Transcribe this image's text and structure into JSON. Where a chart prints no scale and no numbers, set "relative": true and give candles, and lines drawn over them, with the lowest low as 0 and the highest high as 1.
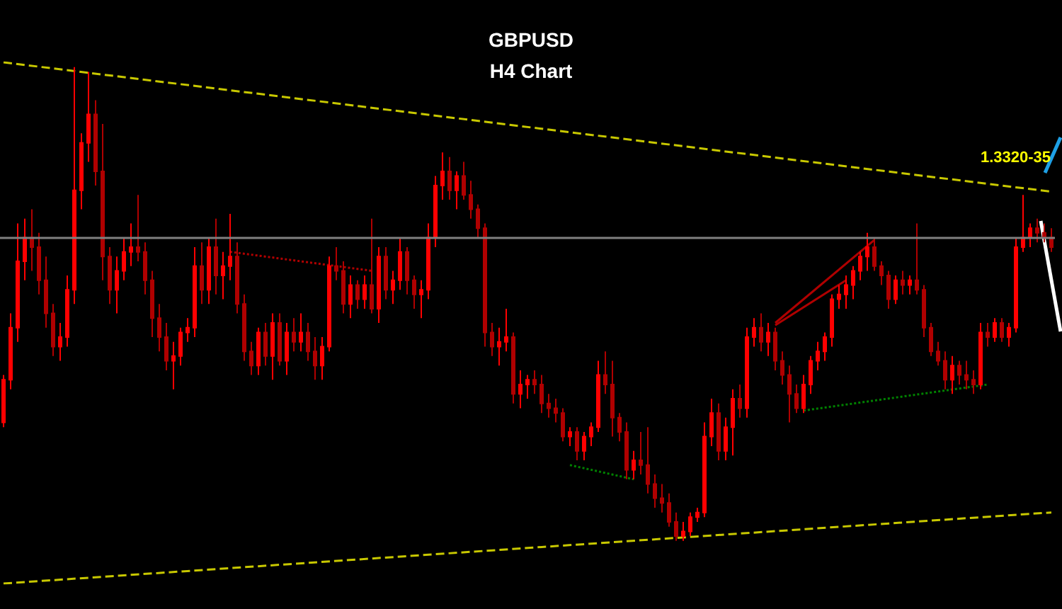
{
  "chart_data": {
    "type": "candlestick",
    "title": "GBPUSD",
    "subtitle": "H4 Chart",
    "relative": true,
    "colors": [
      "#ff0000",
      "#ff0000",
      "#ff0000",
      "#ff0000",
      "#b00000",
      "#b00000",
      "#b00000",
      "#b00000",
      "#ff0000",
      "#ff0000",
      "#ff0000",
      "#ff0000",
      "#ff0000",
      "#b00000",
      "#b00000",
      "#b00000",
      "#ff0000",
      "#ff0000",
      "#ff0000",
      "#b00000",
      "#b00000",
      "#b00000",
      "#b00000",
      "#b00000",
      "#ff0000",
      "#ff0000",
      "#ff0000",
      "#ff0000",
      "#b00000",
      "#ff0000",
      "#b00000",
      "#ff0000",
      "#ff0000",
      "#b00000",
      "#b00000",
      "#b00000",
      "#ff0000",
      "#b00000",
      "#ff0000",
      "#b00000",
      "#ff0000",
      "#b00000",
      "#ff0000",
      "#b00000",
      "#b00000",
      "#ff0000",
      "#ff0000",
      "#b00000",
      "#b00000",
      "#ff0000",
      "#b00000",
      "#ff0000",
      "#b00000",
      "#ff0000",
      "#b00000",
      "#ff0000",
      "#ff0000",
      "#b00000",
      "#b00000",
      "#ff0000",
      "#ff0000",
      "#ff0000",
      "#ff0000",
      "#b00000",
      "#ff0000",
      "#b00000",
      "#b00000",
      "#b00000",
      "#b00000",
      "#b00000",
      "#ff0000",
      "#ff0000",
      "#b00000",
      "#ff0000",
      "#ff0000",
      "#b00000",
      "#b00000",
      "#b00000",
      "#b00000",
      "#b00000",
      "#ff0000",
      "#b00000",
      "#ff0000",
      "#ff0000",
      "#ff0000",
      "#b00000",
      "#b00000",
      "#b00000",
      "#b00000",
      "#ff0000",
      "#b00000",
      "#b00000",
      "#b00000",
      "#b00000",
      "#b00000",
      "#b00000",
      "#ff0000",
      "#ff0000",
      "#ff0000",
      "#ff0000",
      "#ff0000",
      "#b00000",
      "#ff0000",
      "#ff0000",
      "#b00000",
      "#ff0000",
      "#ff0000",
      "#b00000",
      "#ff0000",
      "#b00000",
      "#b00000",
      "#b00000",
      "#b00000",
      "#ff0000",
      "#ff0000",
      "#ff0000",
      "#ff0000",
      "#ff0000",
      "#ff0000",
      "#ff0000",
      "#ff0000",
      "#ff0000",
      "#ff0000",
      "#b00000",
      "#b00000",
      "#b00000",
      "#ff0000",
      "#b00000",
      "#ff0000",
      "#b00000",
      "#b00000",
      "#b00000",
      "#b00000",
      "#b00000",
      "#ff0000",
      "#b00000",
      "#b00000",
      "#b00000",
      "#ff0000",
      "#b00000",
      "#ff0000",
      "#b00000",
      "#ff0000",
      "#ff0000",
      "#ff0000",
      "#ff0000",
      "#b00000",
      "#b00000",
      "#b00000"
    ],
    "categories": [
      null,
      null,
      null,
      null,
      null,
      null,
      null,
      null,
      null,
      null,
      null,
      null,
      null,
      null,
      null,
      null,
      null,
      null,
      null,
      null,
      null,
      null,
      null,
      null,
      null,
      null,
      null,
      null,
      null,
      null,
      null,
      null,
      null,
      null,
      null,
      null,
      null,
      null,
      null,
      null,
      null,
      null,
      null,
      null,
      null,
      null,
      null,
      null,
      null,
      null,
      null,
      null,
      null,
      null,
      null,
      null,
      null,
      null,
      null,
      null,
      null,
      null,
      null,
      null,
      null,
      null,
      null,
      null,
      null,
      null,
      null,
      null,
      null,
      null,
      null,
      null,
      null,
      null,
      null,
      null,
      null,
      null,
      null,
      null,
      null,
      null,
      null,
      null,
      null,
      null,
      null,
      null,
      null,
      null,
      null,
      null,
      null,
      null,
      null,
      null,
      null,
      null,
      null,
      null,
      null,
      null,
      null,
      null,
      null,
      null,
      null,
      null,
      null,
      null,
      null,
      null,
      null,
      null,
      null,
      null,
      null,
      null,
      null,
      null,
      null,
      null,
      null,
      null,
      null,
      null,
      null,
      null,
      null,
      null,
      null,
      null,
      null,
      null,
      null,
      null,
      null,
      null,
      null,
      null,
      null,
      null,
      null,
      null,
      null
    ],
    "ohlc": [
      [
        0.25,
        0.35,
        0.24,
        0.34
      ],
      [
        0.34,
        0.48,
        0.32,
        0.45
      ],
      [
        0.45,
        0.67,
        0.42,
        0.59
      ],
      [
        0.59,
        0.68,
        0.55,
        0.64
      ],
      [
        0.64,
        0.7,
        0.57,
        0.62
      ],
      [
        0.62,
        0.65,
        0.52,
        0.55
      ],
      [
        0.55,
        0.6,
        0.45,
        0.48
      ],
      [
        0.48,
        0.5,
        0.39,
        0.41
      ],
      [
        0.41,
        0.46,
        0.38,
        0.43
      ],
      [
        0.43,
        0.56,
        0.41,
        0.53
      ],
      [
        0.53,
        1,
        0.5,
        0.74
      ],
      [
        0.74,
        0.86,
        0.7,
        0.84
      ],
      [
        0.84,
        0.99,
        0.8,
        0.9
      ],
      [
        0.9,
        0.93,
        0.75,
        0.78
      ],
      [
        0.78,
        0.88,
        0.55,
        0.6
      ],
      [
        0.6,
        0.62,
        0.5,
        0.53
      ],
      [
        0.53,
        0.6,
        0.48,
        0.57
      ],
      [
        0.57,
        0.64,
        0.55,
        0.61
      ],
      [
        0.61,
        0.67,
        0.58,
        0.62
      ],
      [
        0.62,
        0.73,
        0.59,
        0.61
      ],
      [
        0.61,
        0.63,
        0.52,
        0.55
      ],
      [
        0.55,
        0.57,
        0.43,
        0.47
      ],
      [
        0.47,
        0.5,
        0.4,
        0.43
      ],
      [
        0.43,
        0.46,
        0.36,
        0.38
      ],
      [
        0.38,
        0.42,
        0.32,
        0.39
      ],
      [
        0.39,
        0.45,
        0.37,
        0.44
      ],
      [
        0.44,
        0.47,
        0.42,
        0.45
      ],
      [
        0.45,
        0.62,
        0.43,
        0.58
      ],
      [
        0.58,
        0.63,
        0.5,
        0.53
      ],
      [
        0.53,
        0.64,
        0.5,
        0.62
      ],
      [
        0.62,
        0.68,
        0.52,
        0.56
      ],
      [
        0.56,
        0.61,
        0.51,
        0.58
      ],
      [
        0.58,
        0.69,
        0.55,
        0.6
      ],
      [
        0.6,
        0.63,
        0.48,
        0.5
      ],
      [
        0.5,
        0.52,
        0.38,
        0.4
      ],
      [
        0.4,
        0.42,
        0.35,
        0.37
      ],
      [
        0.37,
        0.45,
        0.35,
        0.44
      ],
      [
        0.44,
        0.46,
        0.37,
        0.39
      ],
      [
        0.39,
        0.48,
        0.34,
        0.46
      ],
      [
        0.46,
        0.48,
        0.37,
        0.38
      ],
      [
        0.38,
        0.46,
        0.35,
        0.44
      ],
      [
        0.44,
        0.47,
        0.4,
        0.42
      ],
      [
        0.42,
        0.48,
        0.4,
        0.44
      ],
      [
        0.44,
        0.46,
        0.38,
        0.4
      ],
      [
        0.4,
        0.43,
        0.34,
        0.37
      ],
      [
        0.37,
        0.43,
        0.34,
        0.41
      ],
      [
        0.41,
        0.6,
        0.4,
        0.58
      ],
      [
        0.58,
        0.62,
        0.55,
        0.57
      ],
      [
        0.57,
        0.59,
        0.48,
        0.5
      ],
      [
        0.5,
        0.56,
        0.47,
        0.54
      ],
      [
        0.54,
        0.55,
        0.49,
        0.51
      ],
      [
        0.51,
        0.56,
        0.49,
        0.54
      ],
      [
        0.54,
        0.68,
        0.48,
        0.49
      ],
      [
        0.49,
        0.62,
        0.46,
        0.6
      ],
      [
        0.6,
        0.62,
        0.51,
        0.53
      ],
      [
        0.53,
        0.57,
        0.5,
        0.55
      ],
      [
        0.55,
        0.64,
        0.53,
        0.61
      ],
      [
        0.61,
        0.62,
        0.52,
        0.55
      ],
      [
        0.55,
        0.56,
        0.49,
        0.52
      ],
      [
        0.52,
        0.55,
        0.47,
        0.53
      ],
      [
        0.53,
        0.67,
        0.51,
        0.64
      ],
      [
        0.64,
        0.77,
        0.62,
        0.75
      ],
      [
        0.75,
        0.82,
        0.72,
        0.78
      ],
      [
        0.78,
        0.81,
        0.72,
        0.74
      ],
      [
        0.74,
        0.78,
        0.7,
        0.77
      ],
      [
        0.77,
        0.8,
        0.72,
        0.73
      ],
      [
        0.73,
        0.76,
        0.68,
        0.7
      ],
      [
        0.7,
        0.71,
        0.64,
        0.66
      ],
      [
        0.66,
        0.67,
        0.41,
        0.44
      ],
      [
        0.44,
        0.46,
        0.39,
        0.41
      ],
      [
        0.41,
        0.45,
        0.37,
        0.42
      ],
      [
        0.42,
        0.49,
        0.4,
        0.43
      ],
      [
        0.43,
        0.44,
        0.29,
        0.31
      ],
      [
        0.31,
        0.36,
        0.28,
        0.33
      ],
      [
        0.33,
        0.35,
        0.3,
        0.34
      ],
      [
        0.34,
        0.36,
        0.31,
        0.33
      ],
      [
        0.33,
        0.35,
        0.27,
        0.29
      ],
      [
        0.29,
        0.31,
        0.26,
        0.28
      ],
      [
        0.28,
        0.3,
        0.25,
        0.27
      ],
      [
        0.27,
        0.28,
        0.21,
        0.22
      ],
      [
        0.22,
        0.24,
        0.2,
        0.23
      ],
      [
        0.23,
        0.24,
        0.17,
        0.19
      ],
      [
        0.19,
        0.23,
        0.17,
        0.22
      ],
      [
        0.22,
        0.25,
        0.2,
        0.24
      ],
      [
        0.24,
        0.38,
        0.23,
        0.35
      ],
      [
        0.35,
        0.4,
        0.31,
        0.33
      ],
      [
        0.33,
        0.38,
        0.22,
        0.26
      ],
      [
        0.26,
        0.27,
        0.21,
        0.23
      ],
      [
        0.23,
        0.25,
        0.13,
        0.15
      ],
      [
        0.15,
        0.19,
        0.13,
        0.17
      ],
      [
        0.17,
        0.23,
        0.14,
        0.16
      ],
      [
        0.16,
        0.24,
        0.1,
        0.12
      ],
      [
        0.12,
        0.14,
        0.07,
        0.09
      ],
      [
        0.09,
        0.12,
        0.06,
        0.08
      ],
      [
        0.08,
        0.1,
        0.03,
        0.04
      ],
      [
        0.04,
        0.06,
        0,
        0.01
      ],
      [
        0.01,
        0.04,
        0,
        0.02
      ],
      [
        0.02,
        0.06,
        0.01,
        0.05
      ],
      [
        0.05,
        0.07,
        0.04,
        0.06
      ],
      [
        0.06,
        0.25,
        0.05,
        0.22
      ],
      [
        0.22,
        0.3,
        0.2,
        0.27
      ],
      [
        0.27,
        0.29,
        0.17,
        0.19
      ],
      [
        0.19,
        0.26,
        0.17,
        0.24
      ],
      [
        0.24,
        0.32,
        0.18,
        0.3
      ],
      [
        0.3,
        0.33,
        0.26,
        0.28
      ],
      [
        0.28,
        0.45,
        0.26,
        0.43
      ],
      [
        0.43,
        0.47,
        0.41,
        0.45
      ],
      [
        0.45,
        0.48,
        0.4,
        0.42
      ],
      [
        0.42,
        0.46,
        0.39,
        0.44
      ],
      [
        0.44,
        0.45,
        0.36,
        0.38
      ],
      [
        0.38,
        0.4,
        0.33,
        0.35
      ],
      [
        0.35,
        0.37,
        0.25,
        0.31
      ],
      [
        0.31,
        0.33,
        0.27,
        0.28
      ],
      [
        0.28,
        0.35,
        0.27,
        0.33
      ],
      [
        0.33,
        0.39,
        0.31,
        0.38
      ],
      [
        0.38,
        0.42,
        0.36,
        0.4
      ],
      [
        0.4,
        0.44,
        0.38,
        0.43
      ],
      [
        0.43,
        0.52,
        0.41,
        0.51
      ],
      [
        0.51,
        0.54,
        0.49,
        0.52
      ],
      [
        0.52,
        0.56,
        0.49,
        0.54
      ],
      [
        0.54,
        0.58,
        0.51,
        0.57
      ],
      [
        0.57,
        0.61,
        0.55,
        0.6
      ],
      [
        0.6,
        0.65,
        0.57,
        0.62
      ],
      [
        0.62,
        0.64,
        0.57,
        0.58
      ],
      [
        0.58,
        0.59,
        0.54,
        0.56
      ],
      [
        0.56,
        0.57,
        0.49,
        0.51
      ],
      [
        0.51,
        0.56,
        0.5,
        0.55
      ],
      [
        0.55,
        0.57,
        0.52,
        0.54
      ],
      [
        0.54,
        0.56,
        0.52,
        0.55
      ],
      [
        0.55,
        0.67,
        0.52,
        0.53
      ],
      [
        0.53,
        0.54,
        0.43,
        0.45
      ],
      [
        0.45,
        0.46,
        0.39,
        0.4
      ],
      [
        0.4,
        0.42,
        0.37,
        0.38
      ],
      [
        0.38,
        0.4,
        0.32,
        0.34
      ],
      [
        0.34,
        0.39,
        0.31,
        0.37
      ],
      [
        0.37,
        0.38,
        0.33,
        0.35
      ],
      [
        0.35,
        0.38,
        0.32,
        0.34
      ],
      [
        0.34,
        0.36,
        0.31,
        0.33
      ],
      [
        0.33,
        0.46,
        0.32,
        0.44
      ],
      [
        0.44,
        0.46,
        0.41,
        0.43
      ],
      [
        0.43,
        0.47,
        0.42,
        0.46
      ],
      [
        0.46,
        0.47,
        0.42,
        0.43
      ],
      [
        0.43,
        0.46,
        0.41,
        0.45
      ],
      [
        0.45,
        0.64,
        0.44,
        0.62
      ],
      [
        0.62,
        0.73,
        0.61,
        0.64
      ],
      [
        0.64,
        0.67,
        0.62,
        0.66
      ],
      [
        0.66,
        0.68,
        0.63,
        0.65
      ],
      [
        0.65,
        0.67,
        0.63,
        0.64
      ],
      [
        0.64,
        0.66,
        0.61,
        0.62
      ]
    ],
    "series": [
      {
        "type": "line",
        "color": "#c8c800",
        "line_style": "dashed",
        "values": [
          1.01,
          null,
          null,
          null,
          null,
          null,
          null,
          null,
          null,
          null,
          null,
          null,
          null,
          null,
          null,
          null,
          null,
          null,
          null,
          null,
          null,
          null,
          null,
          null,
          null,
          null,
          null,
          null,
          null,
          null,
          null,
          null,
          null,
          null,
          null,
          null,
          null,
          null,
          null,
          null,
          null,
          null,
          null,
          null,
          null,
          null,
          null,
          null,
          null,
          null,
          null,
          null,
          null,
          null,
          null,
          null,
          null,
          null,
          null,
          null,
          null,
          null,
          null,
          null,
          null,
          null,
          null,
          null,
          null,
          null,
          null,
          null,
          null,
          null,
          null,
          null,
          null,
          null,
          null,
          null,
          null,
          null,
          null,
          null,
          null,
          null,
          null,
          null,
          null,
          null,
          null,
          null,
          null,
          null,
          null,
          null,
          null,
          null,
          null,
          null,
          null,
          null,
          null,
          null,
          null,
          null,
          null,
          null,
          null,
          null,
          null,
          null,
          null,
          null,
          null,
          null,
          null,
          null,
          null,
          null,
          null,
          null,
          null,
          null,
          null,
          null,
          null,
          null,
          null,
          null,
          null,
          null,
          null,
          null,
          null,
          null,
          null,
          null,
          null,
          null,
          null,
          null,
          null,
          null,
          null,
          null,
          null,
          null,
          0.737
        ]
      },
      {
        "type": "line",
        "color": "#c8c800",
        "line_style": "dashed",
        "values": [
          -0.09,
          null,
          null,
          null,
          null,
          null,
          null,
          null,
          null,
          null,
          null,
          null,
          null,
          null,
          null,
          null,
          null,
          null,
          null,
          null,
          null,
          null,
          null,
          null,
          null,
          null,
          null,
          null,
          null,
          null,
          null,
          null,
          null,
          null,
          null,
          null,
          null,
          null,
          null,
          null,
          null,
          null,
          null,
          null,
          null,
          null,
          null,
          null,
          null,
          null,
          null,
          null,
          null,
          null,
          null,
          null,
          null,
          null,
          null,
          null,
          null,
          null,
          null,
          null,
          null,
          null,
          null,
          null,
          null,
          null,
          null,
          null,
          null,
          null,
          null,
          null,
          null,
          null,
          null,
          null,
          null,
          null,
          null,
          null,
          null,
          null,
          null,
          null,
          null,
          null,
          null,
          null,
          null,
          null,
          null,
          null,
          null,
          null,
          null,
          null,
          null,
          null,
          null,
          null,
          null,
          null,
          null,
          null,
          null,
          null,
          null,
          null,
          null,
          null,
          null,
          null,
          null,
          null,
          null,
          null,
          null,
          null,
          null,
          null,
          null,
          null,
          null,
          null,
          null,
          null,
          null,
          null,
          null,
          null,
          null,
          null,
          null,
          null,
          null,
          null,
          null,
          null,
          null,
          null,
          null,
          null,
          null,
          null,
          0.06
        ]
      },
      {
        "type": "line",
        "color": "#b00000",
        "line_style": "dotted",
        "values": [
          null,
          null,
          null,
          null,
          null,
          null,
          null,
          null,
          null,
          null,
          null,
          null,
          null,
          null,
          null,
          null,
          null,
          null,
          null,
          null,
          null,
          null,
          null,
          null,
          null,
          null,
          null,
          null,
          null,
          null,
          null,
          null,
          0.61,
          null,
          null,
          null,
          null,
          null,
          null,
          null,
          null,
          null,
          null,
          null,
          null,
          null,
          null,
          null,
          null,
          null,
          null,
          null,
          0.57,
          null,
          null,
          null,
          null,
          null,
          null,
          null,
          null,
          null,
          null,
          null,
          null,
          null,
          null,
          null,
          null,
          null,
          null,
          null,
          null,
          null,
          null,
          null,
          null,
          null,
          null,
          null,
          null,
          null,
          null,
          null,
          null,
          null,
          null,
          null,
          null,
          null,
          null,
          null,
          null,
          null,
          null,
          null,
          null,
          null,
          null,
          null,
          null,
          null,
          null,
          null,
          null,
          null,
          null,
          null,
          null,
          null,
          null,
          null,
          null,
          null,
          null,
          null,
          null,
          null,
          null,
          null,
          null,
          null,
          null,
          null,
          null,
          null,
          null,
          null,
          null,
          null,
          null,
          null,
          null,
          null,
          null,
          null,
          null,
          null,
          null,
          null,
          null,
          null,
          null,
          null,
          null,
          null,
          null,
          null,
          null
        ]
      },
      {
        "type": "line",
        "color": "#008000",
        "line_style": "dotted",
        "values": [
          null,
          null,
          null,
          null,
          null,
          null,
          null,
          null,
          null,
          null,
          null,
          null,
          null,
          null,
          null,
          null,
          null,
          null,
          null,
          null,
          null,
          null,
          null,
          null,
          null,
          null,
          null,
          null,
          null,
          null,
          null,
          null,
          null,
          null,
          null,
          null,
          null,
          null,
          null,
          null,
          null,
          null,
          null,
          null,
          null,
          null,
          null,
          null,
          null,
          null,
          null,
          null,
          null,
          null,
          null,
          null,
          null,
          null,
          null,
          null,
          null,
          null,
          null,
          null,
          null,
          null,
          null,
          null,
          null,
          null,
          null,
          null,
          null,
          null,
          null,
          null,
          null,
          null,
          null,
          null,
          0.16,
          null,
          null,
          null,
          null,
          null,
          null,
          null,
          null,
          0.13,
          null,
          null,
          null,
          null,
          null,
          null,
          null,
          null,
          null,
          null,
          null,
          null,
          null,
          null,
          null,
          null,
          null,
          null,
          null,
          null,
          null,
          null,
          null,
          null,
          null,
          null,
          null,
          null,
          null,
          null,
          null,
          null,
          null,
          null,
          null,
          null,
          null,
          null,
          null,
          null,
          null,
          null,
          null,
          null,
          null,
          null,
          null,
          null,
          null,
          null,
          null,
          null,
          null,
          null,
          null,
          null,
          null,
          null,
          null
        ]
      },
      {
        "type": "line",
        "color": "#b00000",
        "line_style": "solid",
        "values": [
          null,
          null,
          null,
          null,
          null,
          null,
          null,
          null,
          null,
          null,
          null,
          null,
          null,
          null,
          null,
          null,
          null,
          null,
          null,
          null,
          null,
          null,
          null,
          null,
          null,
          null,
          null,
          null,
          null,
          null,
          null,
          null,
          null,
          null,
          null,
          null,
          null,
          null,
          null,
          null,
          null,
          null,
          null,
          null,
          null,
          null,
          null,
          null,
          null,
          null,
          null,
          null,
          null,
          null,
          null,
          null,
          null,
          null,
          null,
          null,
          null,
          null,
          null,
          null,
          null,
          null,
          null,
          null,
          null,
          null,
          null,
          null,
          null,
          null,
          null,
          null,
          null,
          null,
          null,
          null,
          null,
          null,
          null,
          null,
          null,
          null,
          null,
          null,
          null,
          null,
          null,
          null,
          null,
          null,
          null,
          null,
          null,
          null,
          null,
          null,
          null,
          null,
          null,
          null,
          null,
          null,
          null,
          null,
          null,
          0.46,
          null,
          null,
          null,
          null,
          null,
          null,
          null,
          null,
          null,
          null,
          null,
          null,
          null,
          0.635,
          null,
          null,
          null,
          null,
          null,
          null,
          null,
          null,
          null,
          null,
          null,
          null,
          null,
          null,
          null,
          null,
          null,
          null,
          null,
          null,
          null,
          null,
          null,
          null,
          null
        ]
      },
      {
        "type": "line",
        "color": "#b00000",
        "line_style": "solid",
        "values": [
          null,
          null,
          null,
          null,
          null,
          null,
          null,
          null,
          null,
          null,
          null,
          null,
          null,
          null,
          null,
          null,
          null,
          null,
          null,
          null,
          null,
          null,
          null,
          null,
          null,
          null,
          null,
          null,
          null,
          null,
          null,
          null,
          null,
          null,
          null,
          null,
          null,
          null,
          null,
          null,
          null,
          null,
          null,
          null,
          null,
          null,
          null,
          null,
          null,
          null,
          null,
          null,
          null,
          null,
          null,
          null,
          null,
          null,
          null,
          null,
          null,
          null,
          null,
          null,
          null,
          null,
          null,
          null,
          null,
          null,
          null,
          null,
          null,
          null,
          null,
          null,
          null,
          null,
          null,
          null,
          null,
          null,
          null,
          null,
          null,
          null,
          null,
          null,
          null,
          null,
          null,
          null,
          null,
          null,
          null,
          null,
          null,
          null,
          null,
          null,
          null,
          null,
          null,
          null,
          null,
          null,
          null,
          null,
          null,
          0.455,
          null,
          null,
          null,
          null,
          null,
          null,
          null,
          null,
          null,
          0.55,
          null,
          null,
          null,
          null,
          null,
          null,
          null,
          null,
          null,
          null,
          null,
          null,
          null,
          null,
          null,
          null,
          null,
          null,
          null,
          null,
          null,
          null,
          null,
          null,
          null,
          null,
          null,
          null,
          null
        ]
      },
      {
        "type": "line",
        "color": "#008000",
        "line_style": "dotted",
        "values": [
          null,
          null,
          null,
          null,
          null,
          null,
          null,
          null,
          null,
          null,
          null,
          null,
          null,
          null,
          null,
          null,
          null,
          null,
          null,
          null,
          null,
          null,
          null,
          null,
          null,
          null,
          null,
          null,
          null,
          null,
          null,
          null,
          null,
          null,
          null,
          null,
          null,
          null,
          null,
          null,
          null,
          null,
          null,
          null,
          null,
          null,
          null,
          null,
          null,
          null,
          null,
          null,
          null,
          null,
          null,
          null,
          null,
          null,
          null,
          null,
          null,
          null,
          null,
          null,
          null,
          null,
          null,
          null,
          null,
          null,
          null,
          null,
          null,
          null,
          null,
          null,
          null,
          null,
          null,
          null,
          null,
          null,
          null,
          null,
          null,
          null,
          null,
          null,
          null,
          null,
          null,
          null,
          null,
          null,
          null,
          null,
          null,
          null,
          null,
          null,
          null,
          null,
          null,
          null,
          null,
          null,
          null,
          null,
          null,
          null,
          null,
          null,
          null,
          0.275,
          null,
          null,
          null,
          null,
          null,
          null,
          null,
          null,
          null,
          null,
          null,
          null,
          null,
          null,
          null,
          null,
          null,
          null,
          null,
          null,
          null,
          null,
          null,
          null,
          null,
          0.33,
          null,
          null,
          null,
          null,
          null,
          null,
          null,
          null,
          null
        ]
      }
    ],
    "ref_lines": [
      {
        "axis": "y",
        "value": 0.635,
        "color": "#808080",
        "line_style": "solid"
      }
    ],
    "annotations": [
      "1.3320-35"
    ]
  }
}
